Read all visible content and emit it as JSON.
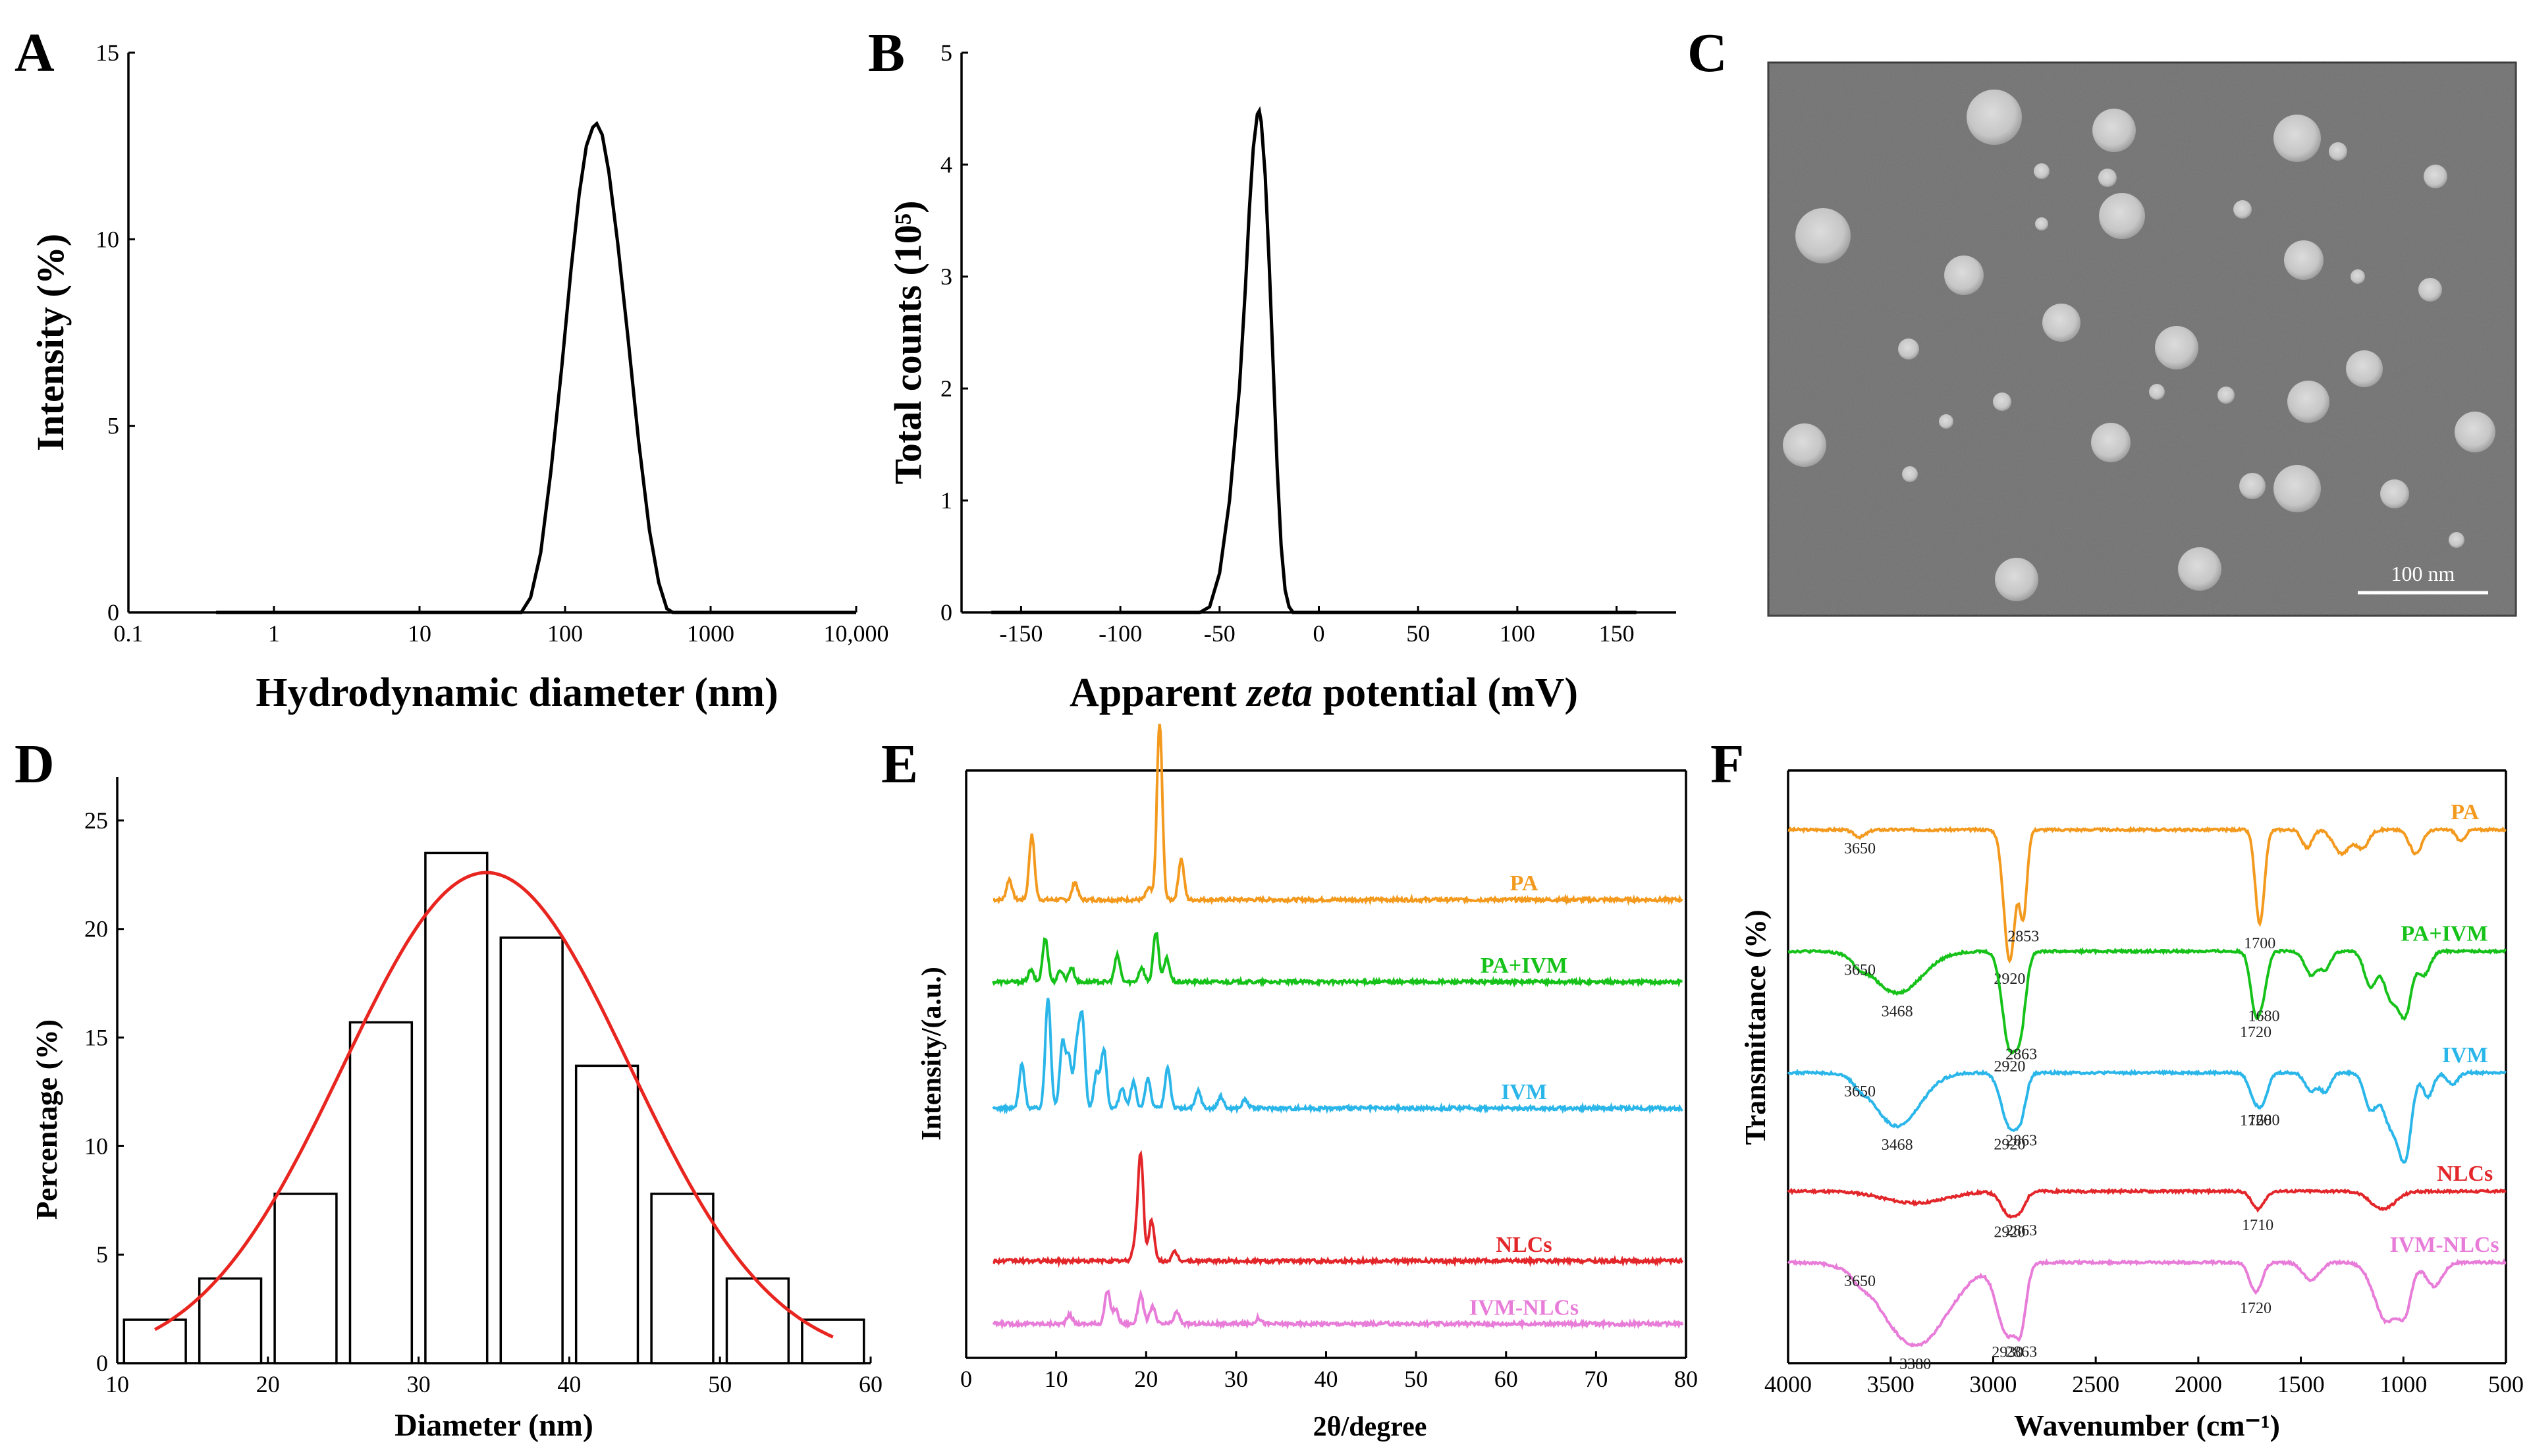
{
  "chart_data": [
    {
      "panel": "A",
      "type": "line",
      "xscale": "log",
      "xlabel": "Hydrodynamic diameter (nm)",
      "ylabel": "Intensity (%)",
      "xlim": [
        0.1,
        10000
      ],
      "ylim": [
        0,
        15
      ],
      "xticks": [
        "0.1",
        "1",
        "10",
        "100",
        "1000",
        "10,000"
      ],
      "yticks": [
        "0",
        "5",
        "10",
        "15"
      ],
      "x": [
        0.4,
        10,
        50,
        58,
        68,
        80,
        95,
        110,
        125,
        140,
        155,
        165,
        180,
        200,
        230,
        270,
        320,
        380,
        440,
        500,
        550,
        10000
      ],
      "y": [
        0,
        0,
        0,
        0.4,
        1.6,
        3.8,
        6.6,
        9.2,
        11.2,
        12.5,
        13.0,
        13.1,
        12.8,
        11.8,
        9.9,
        7.4,
        4.6,
        2.2,
        0.8,
        0.1,
        0,
        0
      ]
    },
    {
      "panel": "B",
      "type": "line",
      "xlabel_pre": "Apparent ",
      "xlabel_em": "zeta",
      "xlabel_post": " potential (mV)",
      "ylabel": "Total counts (10⁵)",
      "xlim": [
        -180,
        180
      ],
      "ylim": [
        0,
        5
      ],
      "xticks": [
        "-150",
        "-100",
        "-50",
        "0",
        "50",
        "100",
        "150"
      ],
      "yticks": [
        "0",
        "1",
        "2",
        "3",
        "4",
        "5"
      ],
      "x": [
        -165,
        -65,
        -60,
        -55,
        -50,
        -45,
        -40,
        -37,
        -35,
        -33,
        -31,
        -30,
        -29,
        -27,
        -25,
        -23,
        -21,
        -19,
        -17,
        -15,
        -13,
        160
      ],
      "y": [
        0,
        0,
        0,
        0.05,
        0.35,
        1.0,
        2.0,
        2.9,
        3.6,
        4.15,
        4.45,
        4.48,
        4.38,
        3.9,
        3.1,
        2.2,
        1.3,
        0.6,
        0.2,
        0.05,
        0,
        0
      ]
    },
    {
      "panel": "D",
      "type": "bar",
      "xlabel": "Diameter (nm)",
      "ylabel": "Percentage (%)",
      "xlim": [
        10,
        60
      ],
      "ylim": [
        0,
        27
      ],
      "xticks": [
        "10",
        "20",
        "30",
        "40",
        "50",
        "60"
      ],
      "yticks": [
        "0",
        "5",
        "10",
        "15",
        "20",
        "25"
      ],
      "bin_centers": [
        12.5,
        17.5,
        22.5,
        27.5,
        32.5,
        37.5,
        42.5,
        47.5,
        52.5,
        57.5
      ],
      "values": [
        2.0,
        3.9,
        7.8,
        15.7,
        23.5,
        19.6,
        13.7,
        7.8,
        3.9,
        2.0
      ],
      "fit": {
        "type": "gaussian",
        "peak": 22.6,
        "center": 34.5,
        "sigma": 9.5,
        "x_range": [
          12.5,
          57.5
        ],
        "color": "#e8251f"
      }
    },
    {
      "panel": "E",
      "type": "line",
      "xlabel": "2θ/degree",
      "ylabel": "Intensity/(a.u.)",
      "xlim": [
        0,
        80
      ],
      "xticks": [
        "0",
        "10",
        "20",
        "30",
        "40",
        "50",
        "60",
        "70",
        "80"
      ],
      "series": [
        {
          "name": "PA",
          "color": "#f39a1e",
          "baseline": 0.78,
          "peaks": [
            [
              4.8,
              0.035
            ],
            [
              7.3,
              0.11
            ],
            [
              12.1,
              0.03
            ],
            [
              21.5,
              0.3
            ],
            [
              23.9,
              0.07
            ],
            [
              20.3,
              0.02
            ]
          ]
        },
        {
          "name": "PA+IVM",
          "color": "#16c21a",
          "baseline": 0.64,
          "peaks": [
            [
              7.2,
              0.02
            ],
            [
              8.8,
              0.075
            ],
            [
              10.5,
              0.02
            ],
            [
              11.7,
              0.025
            ],
            [
              16.8,
              0.045
            ],
            [
              21.1,
              0.085
            ],
            [
              22.3,
              0.04
            ],
            [
              19.5,
              0.025
            ]
          ]
        },
        {
          "name": "IVM",
          "color": "#2bb6ea",
          "baseline": 0.425,
          "peaks": [
            [
              6.2,
              0.075
            ],
            [
              9.1,
              0.19
            ],
            [
              10.7,
              0.11
            ],
            [
              11.4,
              0.085
            ],
            [
              12.3,
              0.1
            ],
            [
              12.9,
              0.15
            ],
            [
              14.5,
              0.06
            ],
            [
              15.3,
              0.1
            ],
            [
              17.3,
              0.035
            ],
            [
              18.6,
              0.045
            ],
            [
              20.2,
              0.05
            ],
            [
              22.4,
              0.07
            ],
            [
              25.8,
              0.03
            ],
            [
              28.3,
              0.02
            ],
            [
              31,
              0.015
            ]
          ]
        },
        {
          "name": "NLCs",
          "color": "#e2262a",
          "baseline": 0.165,
          "peaks": [
            [
              19.4,
              0.18
            ],
            [
              20.6,
              0.07
            ],
            [
              18.8,
              0.03
            ],
            [
              23.2,
              0.015
            ]
          ]
        },
        {
          "name": "IVM-NLCs",
          "color": "#e87cd9",
          "baseline": 0.058,
          "peaks": [
            [
              11.5,
              0.015
            ],
            [
              15.7,
              0.055
            ],
            [
              16.6,
              0.025
            ],
            [
              19.4,
              0.05
            ],
            [
              20.7,
              0.03
            ],
            [
              23.4,
              0.02
            ],
            [
              32.5,
              0.01
            ]
          ]
        }
      ]
    },
    {
      "panel": "F",
      "type": "line",
      "xlabel": "Wavenumber (cm⁻¹)",
      "ylabel": "Transmittance (%)",
      "xlim": [
        4000,
        500
      ],
      "xticks": [
        "4000",
        "3500",
        "3000",
        "2500",
        "2000",
        "1500",
        "1000",
        "500"
      ],
      "series": [
        {
          "name": "PA",
          "color": "#f39a1e",
          "baseline": 0.9,
          "bands": [
            [
              3650,
              0.012,
              30
            ],
            [
              2920,
              0.22,
              28
            ],
            [
              2853,
              0.14,
              18
            ],
            [
              1700,
              0.16,
              22
            ],
            [
              1470,
              0.03,
              25
            ],
            [
              1300,
              0.04,
              40
            ],
            [
              1200,
              0.03,
              30
            ],
            [
              940,
              0.04,
              30
            ],
            [
              720,
              0.02,
              20
            ]
          ],
          "annotations": [
            "3650",
            "2920",
            "2853",
            "1700"
          ]
        },
        {
          "name": "PA+IVM",
          "color": "#16c21a",
          "baseline": 0.695,
          "bands": [
            [
              3650,
              0.012,
              30
            ],
            [
              3468,
              0.07,
              120
            ],
            [
              2920,
              0.16,
              35
            ],
            [
              2863,
              0.1,
              25
            ],
            [
              1720,
              0.1,
              25
            ],
            [
              1680,
              0.05,
              22
            ],
            [
              1450,
              0.04,
              30
            ],
            [
              1380,
              0.03,
              25
            ],
            [
              1160,
              0.06,
              30
            ],
            [
              1060,
              0.08,
              35
            ],
            [
              990,
              0.1,
              30
            ],
            [
              900,
              0.04,
              30
            ]
          ],
          "annotations": [
            "3650",
            "3468",
            "2920",
            "2863",
            "1720",
            "1680"
          ]
        },
        {
          "name": "IVM",
          "color": "#2bb6ea",
          "baseline": 0.49,
          "bands": [
            [
              3650,
              0.01,
              30
            ],
            [
              3468,
              0.09,
              110
            ],
            [
              2920,
              0.09,
              40
            ],
            [
              2863,
              0.05,
              25
            ],
            [
              1720,
              0.045,
              30
            ],
            [
              1680,
              0.03,
              25
            ],
            [
              1450,
              0.03,
              30
            ],
            [
              1380,
              0.03,
              25
            ],
            [
              1160,
              0.06,
              30
            ],
            [
              1060,
              0.09,
              40
            ],
            [
              990,
              0.13,
              30
            ],
            [
              880,
              0.04,
              25
            ],
            [
              760,
              0.02,
              25
            ]
          ],
          "annotations": [
            "3650",
            "3468",
            "2920",
            "2863",
            "1720",
            "1680"
          ]
        },
        {
          "name": "NLCs",
          "color": "#e2262a",
          "baseline": 0.29,
          "bands": [
            [
              3380,
              0.02,
              150
            ],
            [
              2920,
              0.04,
              40
            ],
            [
              2863,
              0.02,
              25
            ],
            [
              1710,
              0.03,
              30
            ],
            [
              1100,
              0.03,
              60
            ]
          ],
          "annotations": [
            "2920",
            "2863",
            "1710"
          ]
        },
        {
          "name": "IVM-NLCs",
          "color": "#e87cd9",
          "baseline": 0.17,
          "bands": [
            [
              3650,
              0.01,
              30
            ],
            [
              3380,
              0.14,
              160
            ],
            [
              2930,
              0.12,
              50
            ],
            [
              2863,
              0.07,
              25
            ],
            [
              1720,
              0.05,
              30
            ],
            [
              1450,
              0.03,
              40
            ],
            [
              1080,
              0.1,
              60
            ],
            [
              990,
              0.06,
              30
            ],
            [
              850,
              0.04,
              40
            ]
          ],
          "annotations": [
            "3650",
            "3380",
            "2930",
            "2863",
            "1720"
          ]
        }
      ]
    }
  ],
  "panel_letters": [
    "A",
    "B",
    "C",
    "D",
    "E",
    "F"
  ],
  "micrograph": {
    "scale_bar_label": "100 nm"
  }
}
